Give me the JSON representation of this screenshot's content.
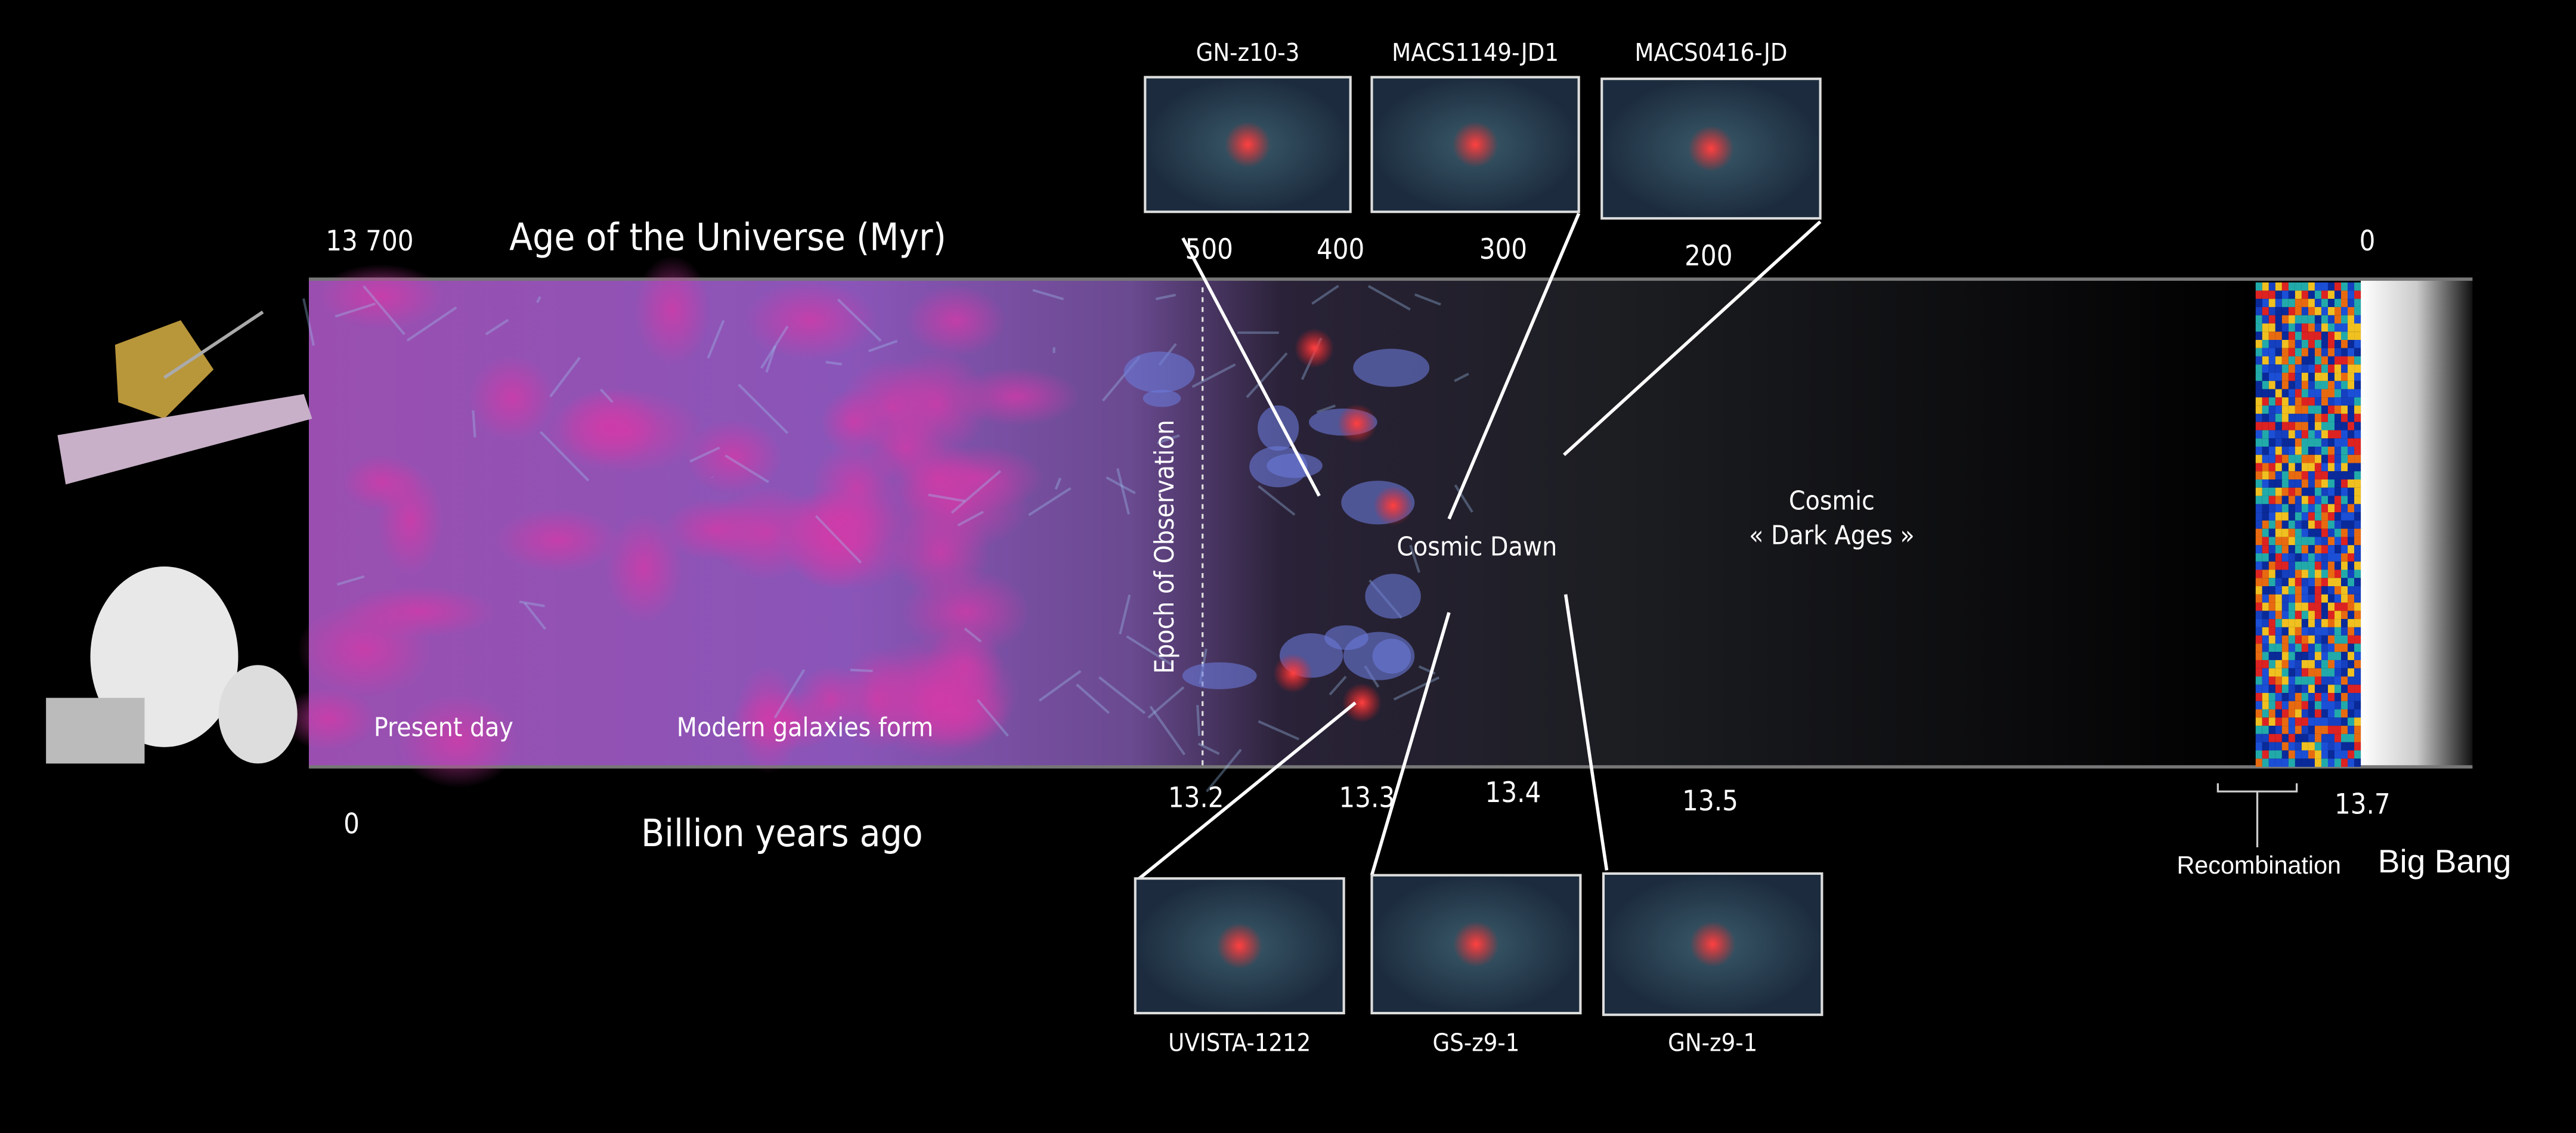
{
  "top_axis": {
    "title": "Age of the Universe (Myr)",
    "ticks": [
      "13 700",
      "500",
      "400",
      "300",
      "200",
      "0"
    ]
  },
  "bottom_axis": {
    "title": "Billion years ago",
    "ticks": [
      "0",
      "13.2",
      "13.3",
      "13.4",
      "13.5",
      "13.7"
    ]
  },
  "regions": {
    "present": "Present day",
    "modern": "Modern galaxies form",
    "epoch": "Epoch of Observation",
    "dawn": "Cosmic Dawn",
    "dark_ages": [
      "Cosmic",
      "« Dark Ages »"
    ]
  },
  "galaxies_top": [
    "GN-z10-3",
    "MACS1149-JD1",
    "MACS0416-JD"
  ],
  "galaxies_bottom": [
    "UVISTA-1212",
    "GS-z9-1",
    "GN-z9-1"
  ],
  "recombination": "Recombination",
  "big_bang": "Big Bang"
}
